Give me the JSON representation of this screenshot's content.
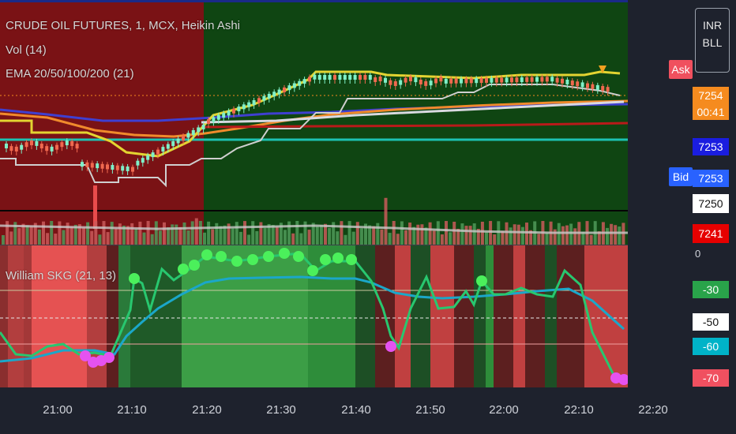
{
  "chart_header": {
    "symbol_title": "CRUDE OIL FUTURES, 1, MCX, Heikin Ashi",
    "volume_label": "Vol (14)",
    "ema_label": "EMA 20/50/100/200 (21)",
    "oscillator_label": "William SKG (21, 13)"
  },
  "price_scale": {
    "currency": "INR",
    "unit": "BLL",
    "ask_label": "Ask",
    "bid_label": "Bid",
    "last_price": "7254",
    "countdown": "00:41",
    "ask_price": "7253",
    "bid_price": "7253",
    "level_white": "7250",
    "level_red": "7241",
    "oscillator_zero": "0"
  },
  "oscillator_levels": {
    "upper": "-30",
    "middle": "-50",
    "cyan": "-60",
    "lower": "-70"
  },
  "time_axis": [
    "21:00",
    "21:10",
    "21:20",
    "21:30",
    "21:40",
    "21:50",
    "22:00",
    "22:10",
    "22:20"
  ],
  "colors": {
    "background": "#1e222d",
    "bull_candle": "#7ff0c8",
    "bear_candle": "#f0694f",
    "ema_20": "#e3d431",
    "ema_50": "#f08a2c",
    "ema_100": "#3f3fd0",
    "ema_200": "#d9d9e0",
    "donchian": "#cfcfcf",
    "red_level": "#b91a1a",
    "teal_level": "#1cc2b3",
    "oscillator_up": "#28c76f",
    "oscillator_down": "#f05a5a",
    "signal_line": "#1ba7c9",
    "dot_green": "#4bf05b",
    "dot_magenta": "#e552f0",
    "label_ask": "#f0505e",
    "label_bid": "#2962ff"
  }
}
